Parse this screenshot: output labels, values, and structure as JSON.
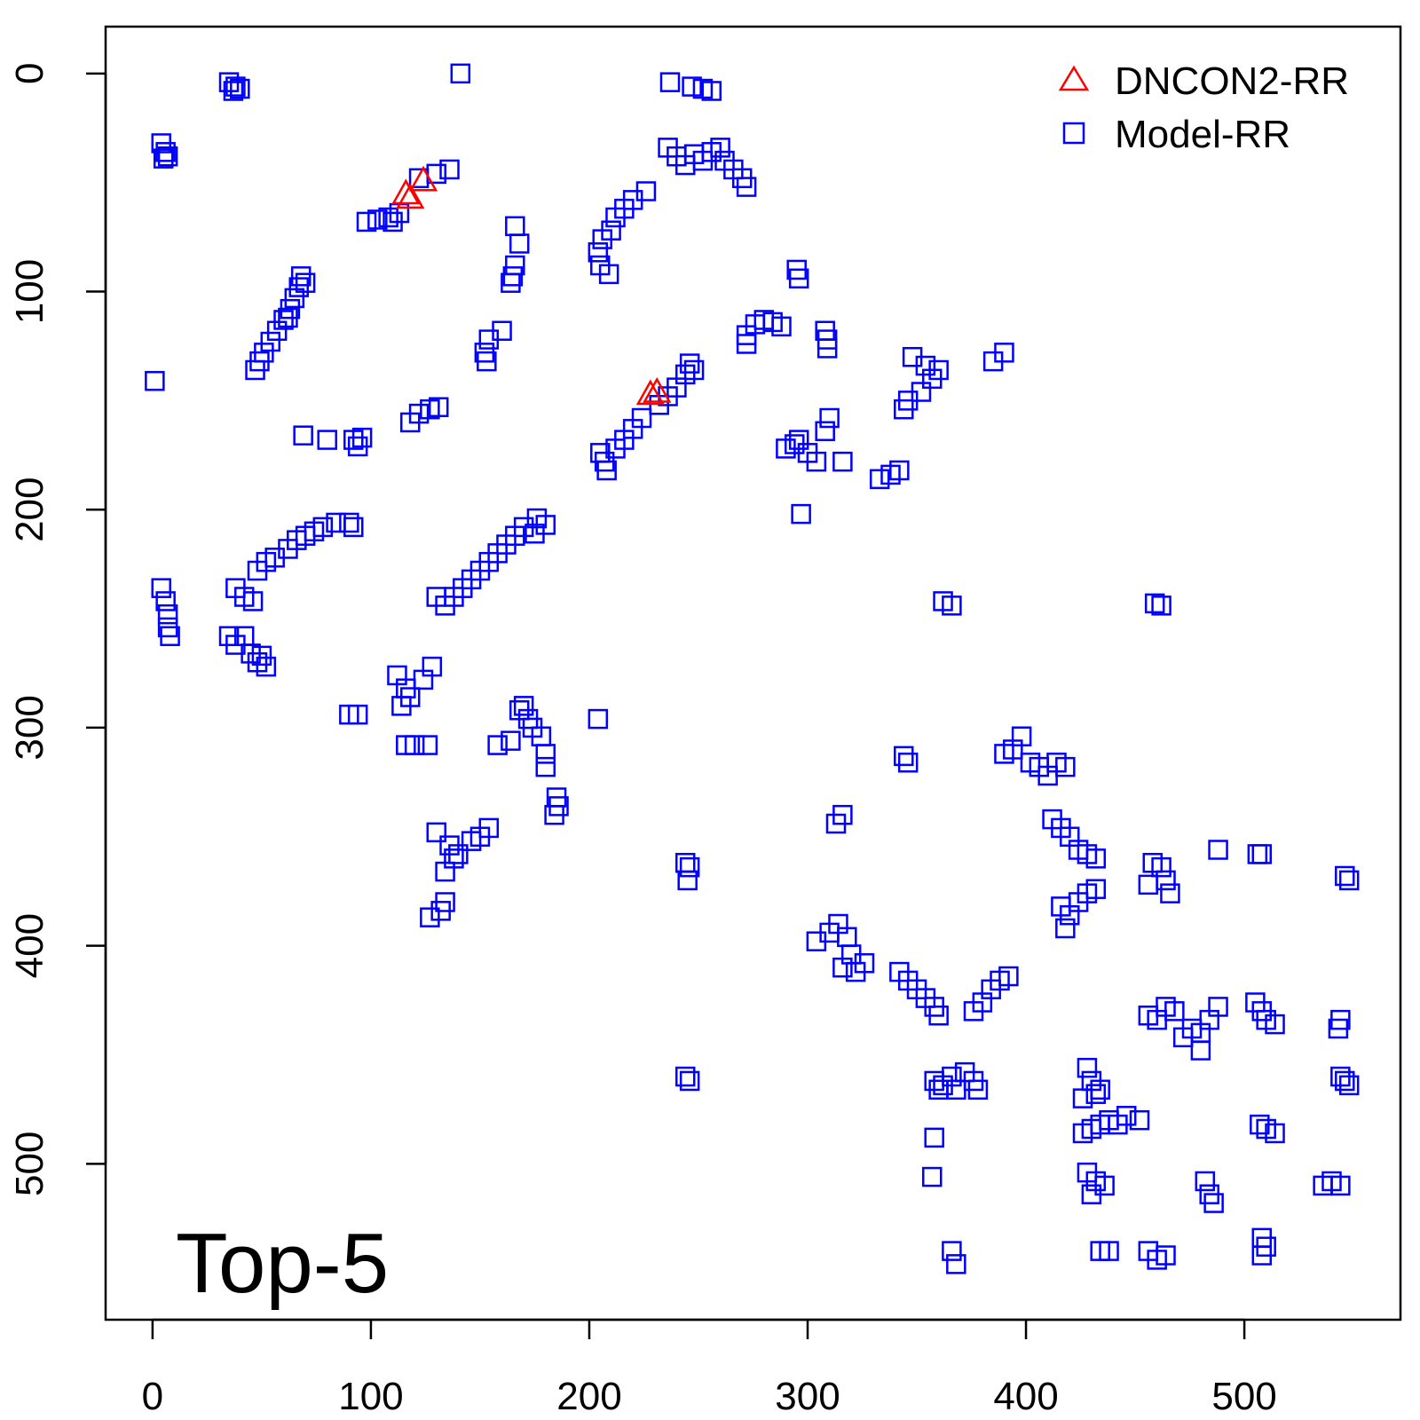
{
  "chart_data": {
    "type": "scatter",
    "title": "",
    "xlabel": "",
    "ylabel": "",
    "xlim": [
      -21.5,
      571.5
    ],
    "ylim": [
      -21.5,
      571.5
    ],
    "y_reversed": true,
    "x_ticks": [
      0,
      100,
      200,
      300,
      400,
      500
    ],
    "y_ticks": [
      0,
      100,
      200,
      300,
      400,
      500
    ],
    "grid": false,
    "legend_placement": "top-right",
    "annotation": "Top-5",
    "series": [
      {
        "name": "DNCON2-RR",
        "marker": "triangle",
        "color": "#ff0000",
        "points": [
          [
            116,
            55
          ],
          [
            118,
            57
          ],
          [
            124,
            49
          ],
          [
            228,
            147
          ],
          [
            231,
            146
          ]
        ]
      },
      {
        "name": "Model-RR",
        "marker": "square",
        "color": "#0000ff",
        "points": [
          [
            141,
            0
          ],
          [
            35,
            4
          ],
          [
            38,
            6
          ],
          [
            40,
            7
          ],
          [
            37,
            8
          ],
          [
            4,
            32
          ],
          [
            6,
            36
          ],
          [
            7,
            38
          ],
          [
            5,
            39
          ],
          [
            237,
            4
          ],
          [
            247,
            6
          ],
          [
            252,
            7
          ],
          [
            256,
            8
          ],
          [
            236,
            34
          ],
          [
            240,
            38
          ],
          [
            244,
            42
          ],
          [
            248,
            37
          ],
          [
            252,
            40
          ],
          [
            256,
            36
          ],
          [
            260,
            34
          ],
          [
            262,
            40
          ],
          [
            266,
            44
          ],
          [
            270,
            48
          ],
          [
            272,
            52
          ],
          [
            226,
            54
          ],
          [
            220,
            58
          ],
          [
            216,
            62
          ],
          [
            212,
            66
          ],
          [
            210,
            72
          ],
          [
            206,
            76
          ],
          [
            204,
            82
          ],
          [
            205,
            88
          ],
          [
            209,
            92
          ],
          [
            166,
            70
          ],
          [
            168,
            78
          ],
          [
            166,
            88
          ],
          [
            165,
            93
          ],
          [
            164,
            96
          ],
          [
            160,
            118
          ],
          [
            154,
            122
          ],
          [
            152,
            128
          ],
          [
            153,
            132
          ],
          [
            98,
            68
          ],
          [
            103,
            67
          ],
          [
            108,
            66
          ],
          [
            113,
            64
          ],
          [
            122,
            48
          ],
          [
            130,
            46
          ],
          [
            136,
            44
          ],
          [
            110,
            68
          ],
          [
            68,
            93
          ],
          [
            67,
            98
          ],
          [
            65,
            103
          ],
          [
            63,
            108
          ],
          [
            60,
            113
          ],
          [
            57,
            118
          ],
          [
            54,
            123
          ],
          [
            51,
            128
          ],
          [
            49,
            132
          ],
          [
            47,
            136
          ],
          [
            70,
            96
          ],
          [
            62,
            112
          ],
          [
            1,
            141
          ],
          [
            118,
            160
          ],
          [
            122,
            156
          ],
          [
            127,
            154
          ],
          [
            131,
            153
          ],
          [
            69,
            166
          ],
          [
            80,
            168
          ],
          [
            92,
            168
          ],
          [
            96,
            167
          ],
          [
            94,
            171
          ],
          [
            205,
            174
          ],
          [
            207,
            178
          ],
          [
            212,
            172
          ],
          [
            216,
            168
          ],
          [
            220,
            163
          ],
          [
            224,
            158
          ],
          [
            232,
            152
          ],
          [
            236,
            148
          ],
          [
            240,
            144
          ],
          [
            244,
            138
          ],
          [
            246,
            133
          ],
          [
            248,
            136
          ],
          [
            208,
            182
          ],
          [
            295,
            90
          ],
          [
            296,
            94
          ],
          [
            272,
            120
          ],
          [
            276,
            115
          ],
          [
            280,
            113
          ],
          [
            284,
            114
          ],
          [
            288,
            116
          ],
          [
            272,
            124
          ],
          [
            308,
            118
          ],
          [
            309,
            122
          ],
          [
            309,
            126
          ],
          [
            348,
            130
          ],
          [
            354,
            134
          ],
          [
            360,
            136
          ],
          [
            357,
            140
          ],
          [
            352,
            146
          ],
          [
            346,
            150
          ],
          [
            344,
            154
          ],
          [
            385,
            132
          ],
          [
            390,
            128
          ],
          [
            310,
            158
          ],
          [
            308,
            164
          ],
          [
            296,
            168
          ],
          [
            290,
            172
          ],
          [
            294,
            170
          ],
          [
            300,
            174
          ],
          [
            304,
            178
          ],
          [
            316,
            178
          ],
          [
            333,
            186
          ],
          [
            338,
            184
          ],
          [
            342,
            182
          ],
          [
            297,
            202
          ],
          [
            4,
            236
          ],
          [
            6,
            242
          ],
          [
            7,
            248
          ],
          [
            7,
            254
          ],
          [
            8,
            258
          ],
          [
            38,
            236
          ],
          [
            42,
            240
          ],
          [
            46,
            242
          ],
          [
            35,
            258
          ],
          [
            38,
            262
          ],
          [
            42,
            258
          ],
          [
            45,
            266
          ],
          [
            48,
            270
          ],
          [
            52,
            272
          ],
          [
            50,
            267
          ],
          [
            48,
            228
          ],
          [
            52,
            224
          ],
          [
            56,
            222
          ],
          [
            62,
            218
          ],
          [
            66,
            214
          ],
          [
            70,
            212
          ],
          [
            74,
            210
          ],
          [
            78,
            208
          ],
          [
            84,
            206
          ],
          [
            90,
            206
          ],
          [
            92,
            208
          ],
          [
            130,
            240
          ],
          [
            134,
            244
          ],
          [
            138,
            240
          ],
          [
            142,
            236
          ],
          [
            146,
            232
          ],
          [
            150,
            228
          ],
          [
            154,
            224
          ],
          [
            158,
            220
          ],
          [
            162,
            216
          ],
          [
            166,
            212
          ],
          [
            170,
            208
          ],
          [
            176,
            204
          ],
          [
            180,
            207
          ],
          [
            175,
            211
          ],
          [
            362,
            242
          ],
          [
            366,
            244
          ],
          [
            459,
            243
          ],
          [
            462,
            244
          ],
          [
            112,
            276
          ],
          [
            116,
            282
          ],
          [
            118,
            286
          ],
          [
            124,
            278
          ],
          [
            128,
            272
          ],
          [
            114,
            290
          ],
          [
            90,
            294
          ],
          [
            94,
            294
          ],
          [
            116,
            308
          ],
          [
            120,
            308
          ],
          [
            126,
            308
          ],
          [
            204,
            296
          ],
          [
            158,
            308
          ],
          [
            164,
            306
          ],
          [
            168,
            292
          ],
          [
            172,
            296
          ],
          [
            174,
            300
          ],
          [
            178,
            304
          ],
          [
            180,
            312
          ],
          [
            180,
            318
          ],
          [
            170,
            290
          ],
          [
            344,
            313
          ],
          [
            346,
            316
          ],
          [
            390,
            312
          ],
          [
            394,
            310
          ],
          [
            398,
            304
          ],
          [
            402,
            316
          ],
          [
            406,
            318
          ],
          [
            410,
            322
          ],
          [
            414,
            316
          ],
          [
            418,
            318
          ],
          [
            185,
            332
          ],
          [
            186,
            336
          ],
          [
            184,
            340
          ],
          [
            130,
            348
          ],
          [
            136,
            354
          ],
          [
            138,
            360
          ],
          [
            134,
            366
          ],
          [
            140,
            358
          ],
          [
            146,
            352
          ],
          [
            150,
            350
          ],
          [
            154,
            346
          ],
          [
            127,
            387
          ],
          [
            132,
            384
          ],
          [
            134,
            380
          ],
          [
            313,
            344
          ],
          [
            316,
            340
          ],
          [
            244,
            362
          ],
          [
            246,
            364
          ],
          [
            245,
            370
          ],
          [
            412,
            342
          ],
          [
            416,
            346
          ],
          [
            420,
            350
          ],
          [
            424,
            356
          ],
          [
            428,
            358
          ],
          [
            432,
            360
          ],
          [
            458,
            362
          ],
          [
            462,
            364
          ],
          [
            464,
            370
          ],
          [
            466,
            376
          ],
          [
            456,
            372
          ],
          [
            488,
            356
          ],
          [
            506,
            358
          ],
          [
            508,
            358
          ],
          [
            416,
            382
          ],
          [
            420,
            386
          ],
          [
            424,
            380
          ],
          [
            428,
            376
          ],
          [
            432,
            374
          ],
          [
            418,
            392
          ],
          [
            546,
            368
          ],
          [
            548,
            370
          ],
          [
            304,
            398
          ],
          [
            310,
            394
          ],
          [
            314,
            390
          ],
          [
            318,
            396
          ],
          [
            320,
            404
          ],
          [
            316,
            410
          ],
          [
            322,
            412
          ],
          [
            326,
            408
          ],
          [
            342,
            412
          ],
          [
            346,
            416
          ],
          [
            350,
            420
          ],
          [
            354,
            424
          ],
          [
            358,
            428
          ],
          [
            360,
            432
          ],
          [
            376,
            430
          ],
          [
            380,
            426
          ],
          [
            384,
            420
          ],
          [
            388,
            416
          ],
          [
            392,
            414
          ],
          [
            456,
            432
          ],
          [
            460,
            434
          ],
          [
            464,
            428
          ],
          [
            468,
            430
          ],
          [
            472,
            442
          ],
          [
            476,
            438
          ],
          [
            480,
            440
          ],
          [
            484,
            434
          ],
          [
            488,
            428
          ],
          [
            480,
            448
          ],
          [
            505,
            426
          ],
          [
            508,
            430
          ],
          [
            510,
            434
          ],
          [
            514,
            436
          ],
          [
            543,
            438
          ],
          [
            544,
            434
          ],
          [
            244,
            460
          ],
          [
            246,
            462
          ],
          [
            358,
            462
          ],
          [
            362,
            464
          ],
          [
            366,
            460
          ],
          [
            372,
            458
          ],
          [
            376,
            462
          ],
          [
            378,
            466
          ],
          [
            360,
            466
          ],
          [
            368,
            466
          ],
          [
            428,
            456
          ],
          [
            430,
            462
          ],
          [
            432,
            468
          ],
          [
            426,
            470
          ],
          [
            434,
            466
          ],
          [
            544,
            460
          ],
          [
            546,
            462
          ],
          [
            548,
            464
          ],
          [
            358,
            488
          ],
          [
            357,
            506
          ],
          [
            426,
            486
          ],
          [
            430,
            484
          ],
          [
            434,
            482
          ],
          [
            438,
            480
          ],
          [
            442,
            482
          ],
          [
            446,
            478
          ],
          [
            452,
            480
          ],
          [
            507,
            482
          ],
          [
            510,
            484
          ],
          [
            514,
            486
          ],
          [
            428,
            504
          ],
          [
            432,
            508
          ],
          [
            436,
            510
          ],
          [
            430,
            514
          ],
          [
            482,
            508
          ],
          [
            484,
            514
          ],
          [
            486,
            518
          ],
          [
            536,
            510
          ],
          [
            540,
            508
          ],
          [
            544,
            510
          ],
          [
            434,
            540
          ],
          [
            438,
            540
          ],
          [
            456,
            540
          ],
          [
            460,
            544
          ],
          [
            464,
            542
          ],
          [
            366,
            540
          ],
          [
            368,
            546
          ],
          [
            508,
            534
          ],
          [
            510,
            538
          ],
          [
            508,
            542
          ]
        ]
      }
    ]
  }
}
